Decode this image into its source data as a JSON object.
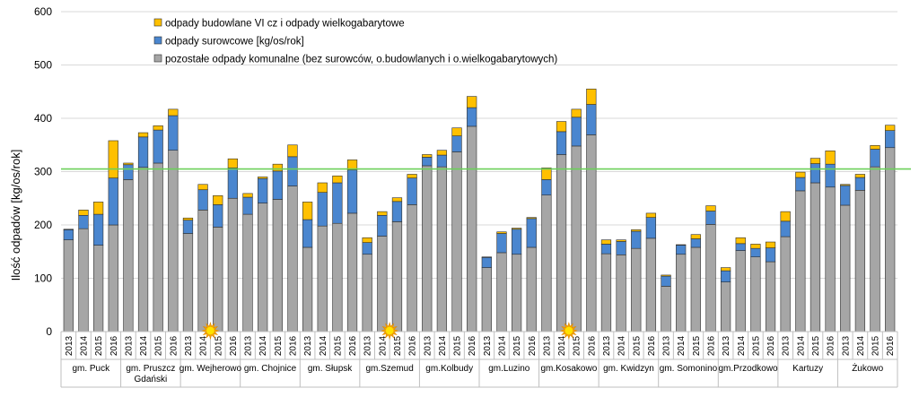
{
  "chart_data": {
    "type": "bar",
    "stacked": true,
    "ylabel": "Ilość odpadów [kg/os/rok]",
    "ylim": [
      0,
      600
    ],
    "yticks": [
      0,
      100,
      200,
      300,
      400,
      500,
      600
    ],
    "grid": "horizontal",
    "legend_position": "top-left",
    "reference_line": {
      "value": 305,
      "color": "#6CD05A"
    },
    "years": [
      "2013",
      "2014",
      "2015",
      "2016"
    ],
    "groups": [
      {
        "label": [
          "gm. Puck"
        ],
        "pos": [
          172,
          193,
          162,
          200
        ],
        "sur": [
          19,
          25,
          58,
          88
        ],
        "bud": [
          1,
          10,
          23,
          70
        ]
      },
      {
        "label": [
          "gm. Pruszcz",
          "Gdański"
        ],
        "pos": [
          285,
          308,
          316,
          340
        ],
        "sur": [
          28,
          57,
          62,
          65
        ],
        "bud": [
          3,
          8,
          8,
          12
        ]
      },
      {
        "label": [
          "gm. Wejherowo"
        ],
        "pos": [
          184,
          228,
          196,
          250
        ],
        "sur": [
          25,
          38,
          42,
          57
        ],
        "bud": [
          4,
          10,
          17,
          17
        ]
      },
      {
        "label": [
          "gm. Chojnice"
        ],
        "pos": [
          220,
          241,
          248,
          273
        ],
        "sur": [
          32,
          46,
          53,
          55
        ],
        "bud": [
          7,
          3,
          13,
          22
        ]
      },
      {
        "label": [
          "gm. Słupsk"
        ],
        "pos": [
          158,
          198,
          203,
          222
        ],
        "sur": [
          52,
          63,
          76,
          81
        ],
        "bud": [
          33,
          18,
          13,
          19
        ]
      },
      {
        "label": [
          "gm.Szemud"
        ],
        "pos": [
          145,
          179,
          206,
          238
        ],
        "sur": [
          22,
          39,
          38,
          50
        ],
        "bud": [
          9,
          7,
          7,
          7
        ]
      },
      {
        "label": [
          "gm.Kolbudy"
        ],
        "pos": [
          311,
          309,
          337,
          385
        ],
        "sur": [
          16,
          22,
          30,
          35
        ],
        "bud": [
          5,
          9,
          15,
          21
        ]
      },
      {
        "label": [
          "gm.Luzino"
        ],
        "pos": [
          120,
          148,
          145,
          158
        ],
        "sur": [
          19,
          36,
          47,
          54
        ],
        "bud": [
          1,
          3,
          2,
          2
        ]
      },
      {
        "label": [
          "gm.Kosakowo"
        ],
        "pos": [
          256,
          332,
          348,
          369
        ],
        "sur": [
          29,
          43,
          54,
          57
        ],
        "bud": [
          22,
          19,
          15,
          29
        ]
      },
      {
        "label": [
          "gm. Kwidzyn"
        ],
        "pos": [
          146,
          144,
          156,
          175
        ],
        "sur": [
          18,
          25,
          32,
          39
        ],
        "bud": [
          8,
          3,
          3,
          8
        ]
      },
      {
        "label": [
          "gm. Somonino"
        ],
        "pos": [
          85,
          145,
          158,
          201
        ],
        "sur": [
          19,
          17,
          16,
          25
        ],
        "bud": [
          2,
          1,
          8,
          10
        ]
      },
      {
        "label": [
          "gm.Przodkowo"
        ],
        "pos": [
          93,
          152,
          140,
          131
        ],
        "sur": [
          21,
          13,
          16,
          26
        ],
        "bud": [
          6,
          11,
          8,
          11
        ]
      },
      {
        "label": [
          "Kartuzy"
        ],
        "pos": [
          178,
          264,
          279,
          271
        ],
        "sur": [
          29,
          25,
          36,
          43
        ],
        "bud": [
          18,
          10,
          10,
          25
        ]
      },
      {
        "label": [
          "Żukowo"
        ],
        "pos": [
          237,
          265,
          309,
          345
        ],
        "sur": [
          37,
          24,
          33,
          32
        ],
        "bud": [
          2,
          6,
          7,
          10
        ]
      }
    ],
    "series": [
      {
        "key": "bud",
        "name": "odpady budowlane VI cz i odpady wielkogabarytowe",
        "color": "#FFC000"
      },
      {
        "key": "sur",
        "name": "odpady surowcowe [kg/os/rok]",
        "color": "#4A86CF"
      },
      {
        "key": "pos",
        "name": "pozostałe odpady komunalne (bez surowców, o.budowlanych i o.wielkogabarytowych)",
        "color": "#A6A6A6"
      }
    ],
    "sun_markers": [
      {
        "group": 2,
        "between_years": [
          "2014",
          "2015"
        ]
      },
      {
        "group": 5,
        "between_years": [
          "2014",
          "2015"
        ]
      },
      {
        "group": 8,
        "between_years": [
          "2014",
          "2015"
        ]
      }
    ],
    "sun_icon": "sun-icon",
    "sun_color": "#FFE200"
  }
}
